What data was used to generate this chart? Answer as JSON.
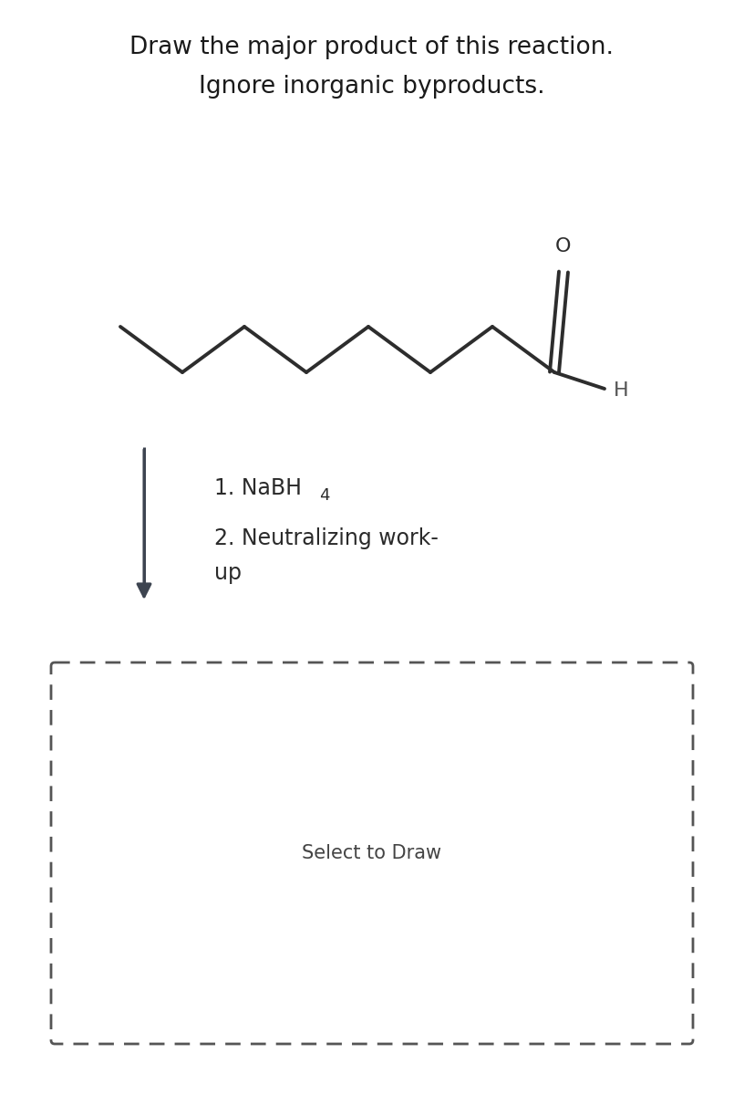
{
  "title_line1": "Draw the major product of this reaction.",
  "title_line2": "Ignore inorganic byproducts.",
  "title_fontsize": 19,
  "title_color": "#1a1a1a",
  "background_color": "#ffffff",
  "molecule_color": "#2d2d2d",
  "molecule_lw": 2.8,
  "reagent_fontsize": 17,
  "arrow_color": "#3d4450",
  "select_text": "Select to Draw",
  "select_fontsize": 15,
  "select_text_color": "#444444",
  "dashed_box_color": "#555555",
  "nabh4_main": "1. NaBH",
  "nabh4_sub": "4",
  "neutralizing": "2. Neutralizing work-",
  "neutralizing2": "up"
}
